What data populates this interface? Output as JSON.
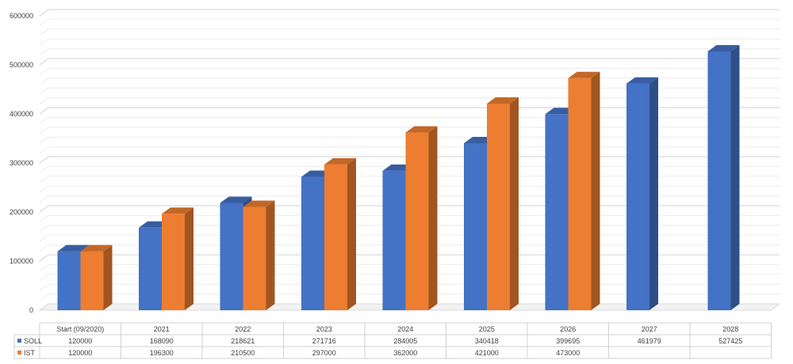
{
  "chart_data": {
    "type": "bar",
    "style": "3d-clustered-column-with-data-table",
    "title": "",
    "xlabel": "",
    "ylabel": "",
    "ylim": [
      0,
      600000
    ],
    "ytick_labels": [
      "0",
      "100000",
      "200000",
      "300000",
      "400000",
      "500000",
      "600000"
    ],
    "grid": true,
    "categories": [
      "Start (09/2020)",
      "2021",
      "2022",
      "2023",
      "2024",
      "2025",
      "2026",
      "2027",
      "2028"
    ],
    "series": [
      {
        "name": "SOLL",
        "color": "#4472C4",
        "values": [
          120000,
          168090,
          218621,
          271716,
          284005,
          340418,
          399695,
          461979,
          527425
        ]
      },
      {
        "name": "IST",
        "color": "#ED7D31",
        "values": [
          120000,
          196300,
          210500,
          297000,
          362000,
          421000,
          473000,
          null,
          null
        ]
      }
    ]
  }
}
